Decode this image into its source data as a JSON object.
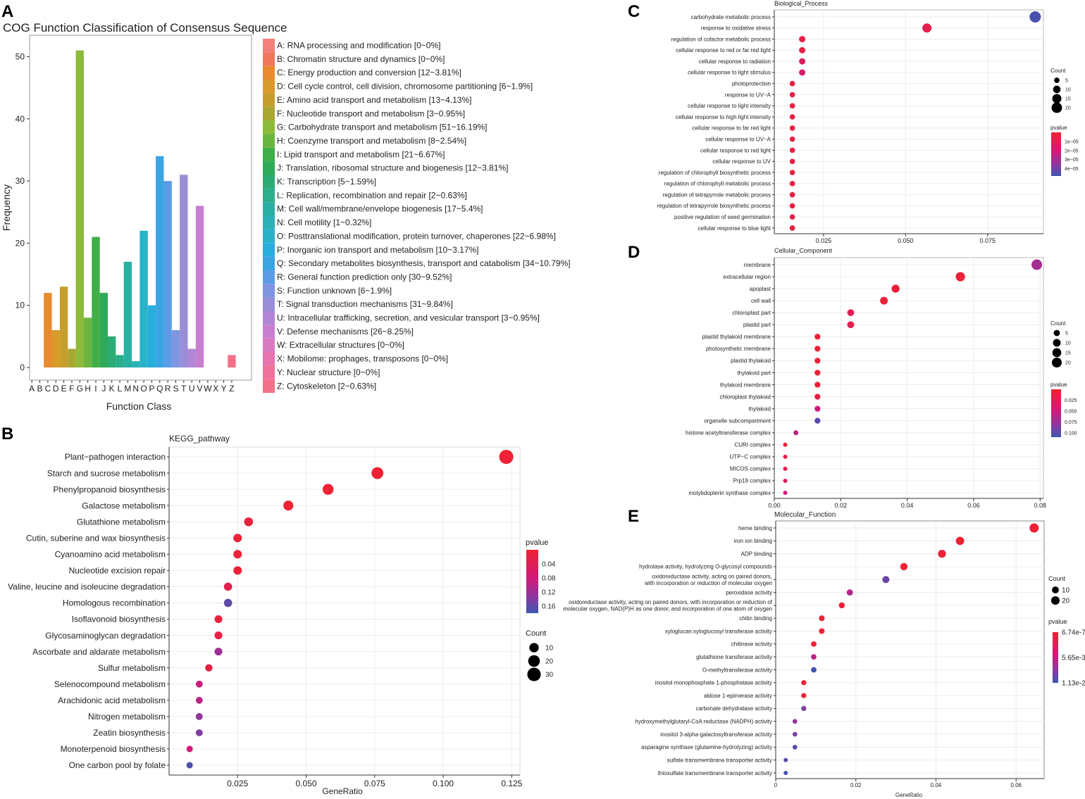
{
  "panels": {
    "a": "A",
    "b": "B",
    "c": "C",
    "d": "D",
    "e": "E"
  },
  "chart_data": [
    {
      "id": "cog",
      "type": "bar",
      "title": "COG Function Classification of Consensus Sequence",
      "xlabel": "Function Class",
      "ylabel": "Frequency",
      "ylim": [
        0,
        55
      ],
      "yticks": [
        0,
        10,
        20,
        30,
        40,
        50
      ],
      "categories": [
        "A",
        "B",
        "C",
        "D",
        "E",
        "F",
        "G",
        "H",
        "I",
        "J",
        "K",
        "L",
        "M",
        "N",
        "O",
        "P",
        "Q",
        "R",
        "S",
        "T",
        "U",
        "V",
        "W",
        "X",
        "Y",
        "Z"
      ],
      "values": [
        0,
        0,
        12,
        6,
        13,
        3,
        51,
        8,
        21,
        12,
        5,
        2,
        17,
        1,
        22,
        10,
        34,
        30,
        6,
        31,
        3,
        26,
        0,
        0,
        0,
        2
      ],
      "colors": [
        "#f47e7a",
        "#f0775e",
        "#e88a2e",
        "#d99a2a",
        "#c59e2c",
        "#a8a833",
        "#8dba3a",
        "#6bb441",
        "#3fae48",
        "#2faa5a",
        "#2bac74",
        "#2aae8c",
        "#29b0a3",
        "#29b2b6",
        "#2ab2c9",
        "#27aedd",
        "#3ba4e3",
        "#5c9ce6",
        "#7f95e0",
        "#9b8ed9",
        "#b186d6",
        "#c87fd0",
        "#d97ac0",
        "#e675ad",
        "#ee729b",
        "#f37088"
      ],
      "legend": [
        "A: RNA processing and modification [0~0%]",
        "B: Chromatin structure and dynamics [0~0%]",
        "C: Energy production and conversion [12~3.81%]",
        "D: Cell cycle control, cell division, chromosome partitioning [6~1.9%]",
        "E: Amino acid transport and metabolism [13~4.13%]",
        "F: Nucleotide transport and metabolism [3~0.95%]",
        "G: Carbohydrate transport and metabolism [51~16.19%]",
        "H: Coenzyme transport and metabolism [8~2.54%]",
        "I: Lipid transport and metabolism [21~6.67%]",
        "J: Translation, ribosomal structure and biogenesis [12~3.81%]",
        "K: Transcription [5~1.59%]",
        "L: Replication, recombination and repair [2~0.63%]",
        "M: Cell wall/membrane/envelope biogenesis [17~5.4%]",
        "N: Cell motility [1~0.32%]",
        "O: Posttranslational modification, protein turnover, chaperones [22~6.98%]",
        "P: Inorganic ion transport and metabolism [10~3.17%]",
        "Q: Secondary metabolites biosynthesis, transport and catabolism [34~10.79%]",
        "R: General function prediction only [30~9.52%]",
        "S: Function unknown [6~1.9%]",
        "T: Signal transduction mechanisms [31~9.84%]",
        "U: Intracellular trafficking, secretion, and vesicular transport [3~0.95%]",
        "V: Defense mechanisms [26~8.25%]",
        "W: Extracellular structures [0~0%]",
        "X: Mobilome: prophages, transposons [0~0%]",
        "Y: Nuclear structure [0~0%]",
        "Z: Cytoskeleton [2~0.63%]"
      ]
    },
    {
      "id": "kegg",
      "type": "scatter",
      "title": "KEGG_pathway",
      "xlabel": "GeneRatio",
      "xlim": [
        0,
        0.128
      ],
      "xticks": [
        0.025,
        0.05,
        0.075,
        0.1,
        0.125
      ],
      "xtick_labels": [
        "0.025",
        "0.050",
        "0.075",
        "0.100",
        "0.125"
      ],
      "categories": [
        "Plant−pathogen interaction",
        "Starch and sucrose metabolism",
        "Phenylpropanoid biosynthesis",
        "Galactose metabolism",
        "Glutathione metabolism",
        "Cutin, suberine and wax biosynthesis",
        "Cyanoamino acid metabolism",
        "Nucleotide excision repair",
        "Valine, leucine and isoleucine degradation",
        "Homologous recombination",
        "Isoflavonoid biosynthesis",
        "Glycosaminoglycan degradation",
        "Ascorbate and aldarate metabolism",
        "Sulfur metabolism",
        "Selenocompound metabolism",
        "Arachidonic acid metabolism",
        "Nitrogen metabolism",
        "Zeatin biosynthesis",
        "Monoterpenoid biosynthesis",
        "One carbon pool by folate"
      ],
      "x": [
        0.123,
        0.076,
        0.058,
        0.0435,
        0.029,
        0.025,
        0.025,
        0.025,
        0.0215,
        0.0215,
        0.018,
        0.018,
        0.018,
        0.0145,
        0.011,
        0.011,
        0.011,
        0.011,
        0.0075,
        0.0075
      ],
      "count": [
        34,
        21,
        16,
        12,
        8,
        7,
        7,
        7,
        6,
        6,
        5,
        5,
        5,
        4,
        3,
        3,
        3,
        3,
        2,
        2
      ],
      "pvalue": [
        0.001,
        0.001,
        0.002,
        0.002,
        0.01,
        0.004,
        0.004,
        0.004,
        0.03,
        0.16,
        0.01,
        0.02,
        0.12,
        0.02,
        0.09,
        0.1,
        0.13,
        0.14,
        0.08,
        0.17
      ],
      "pvalue_legend": {
        "title": "pvalue",
        "range": [
          0.0,
          0.18
        ],
        "ticks": [
          0.04,
          0.08,
          0.12,
          0.16
        ],
        "tick_labels": [
          "0.04",
          "0.08",
          "0.12",
          "0.16"
        ]
      },
      "count_legend": {
        "title": "Count",
        "values": [
          10,
          20,
          30
        ],
        "labels": [
          "10",
          "20",
          "30"
        ]
      },
      "size_scale": {
        "min": 1,
        "max": 34
      }
    },
    {
      "id": "bp",
      "type": "scatter",
      "title": "Biological_Process",
      "xlabel": "",
      "xlim": [
        0.01,
        0.092
      ],
      "xticks": [
        0.025,
        0.05,
        0.075
      ],
      "xtick_labels": [
        "0.025",
        "0.050",
        "0.075"
      ],
      "categories": [
        "carbohydrate metabolic process",
        "response to oxidative stress",
        "regulation of cofactor metabolic process",
        "cellular response to red or far red light",
        "cellular response to radiation",
        "cellular response to light stimulus",
        "photoprotection",
        "response to UV−A",
        "cellular response to light intensity",
        "cellular response to high light intensity",
        "cellular response to far red light",
        "cellular response to UV−A",
        "cellular response to red light",
        "cellular response to UV",
        "regulation of chlorophyll biosynthetic process",
        "regulation of chlorophyll metabolic process",
        "regulation of tetrapyrrole metabolic process",
        "regulation of tetrapyrrole biosynthetic process",
        "positive regulation of seed germination",
        "cellular response to blue light"
      ],
      "x": [
        0.0895,
        0.0565,
        0.0185,
        0.0185,
        0.0185,
        0.0185,
        0.0155,
        0.0155,
        0.0155,
        0.0155,
        0.0155,
        0.0155,
        0.0155,
        0.0155,
        0.0155,
        0.0155,
        0.0155,
        0.0155,
        0.0155,
        0.0155
      ],
      "count": [
        23,
        15,
        7,
        7,
        7,
        7,
        5,
        5,
        5,
        5,
        5,
        5,
        5,
        5,
        5,
        5,
        5,
        5,
        5,
        5
      ],
      "pvalue": [
        4.6e-05,
        8e-06,
        6e-06,
        6e-06,
        1.4e-05,
        1.7e-05,
        5e-06,
        5e-06,
        5e-06,
        5e-06,
        5e-06,
        5e-06,
        5e-06,
        5e-06,
        5e-06,
        5e-06,
        5e-06,
        5e-06,
        5e-06,
        5e-06
      ],
      "pvalue_legend": {
        "title": "pvalue",
        "range": [
          0.0,
          4.8e-05
        ],
        "ticks": [
          1e-05,
          2e-05,
          3e-05,
          4e-05
        ],
        "tick_labels": [
          "1e−05",
          "2e−05",
          "3e−05",
          "4e−05"
        ]
      },
      "count_legend": {
        "title": "Count",
        "values": [
          5,
          10,
          15,
          20
        ],
        "labels": [
          "5",
          "10",
          "15",
          "20"
        ]
      },
      "size_scale": {
        "min": 3,
        "max": 23
      }
    },
    {
      "id": "cc",
      "type": "scatter",
      "title": "Cellular_Component",
      "xlabel": "",
      "xlim": [
        0.0,
        0.081
      ],
      "xticks": [
        0.0,
        0.02,
        0.04,
        0.06,
        0.08
      ],
      "xtick_labels": [
        "0.00",
        "0.02",
        "0.04",
        "0.06",
        "0.08"
      ],
      "categories": [
        "membrane",
        "extracellular region",
        "apoplast",
        "cell wall",
        "chloroplast part",
        "plastid part",
        "plastid thylakoid membrane",
        "photosynthetic membrane",
        "plastid thylakoid",
        "thylakoid part",
        "thylakoid membrane",
        "chloroplast thylakoid",
        "thylakoid",
        "organelle subcompartment",
        "histone acetyltransferase complex",
        "CURI complex",
        "UTP−C complex",
        "MICOS complex",
        "Prp19 complex",
        "molybdopterin synthase complex"
      ],
      "x": [
        0.079,
        0.056,
        0.0365,
        0.033,
        0.023,
        0.023,
        0.013,
        0.013,
        0.013,
        0.013,
        0.013,
        0.013,
        0.013,
        0.013,
        0.0065,
        0.0033,
        0.0033,
        0.0033,
        0.0033,
        0.0033
      ],
      "count": [
        24,
        17,
        11,
        10,
        7,
        7,
        4,
        4,
        4,
        4,
        4,
        4,
        4,
        4,
        2,
        1,
        1,
        1,
        1,
        1
      ],
      "pvalue": [
        0.07,
        0.005,
        0.005,
        0.005,
        0.02,
        0.02,
        0.005,
        0.005,
        0.005,
        0.005,
        0.005,
        0.015,
        0.05,
        0.1,
        0.06,
        0.01,
        0.01,
        0.02,
        0.03,
        0.05
      ],
      "pvalue_legend": {
        "title": "pvalue",
        "range": [
          0.0,
          0.11
        ],
        "ticks": [
          0.025,
          0.05,
          0.075,
          0.1
        ],
        "tick_labels": [
          "0.025",
          "0.050",
          "0.075",
          "0.100"
        ]
      },
      "count_legend": {
        "title": "Count",
        "values": [
          5,
          10,
          15,
          20
        ],
        "labels": [
          "5",
          "10",
          "15",
          "20"
        ]
      },
      "size_scale": {
        "min": 1,
        "max": 24
      }
    },
    {
      "id": "mf",
      "type": "scatter",
      "title": "Molecular_Function",
      "xlabel": "GeneRatio",
      "xlim": [
        0.0,
        0.067
      ],
      "xticks": [
        0.0,
        0.02,
        0.04,
        0.06
      ],
      "xtick_labels": [
        "0",
        "0.02",
        "0.04",
        "0.06"
      ],
      "categories": [
        [
          "heme binding"
        ],
        [
          "iron ion binding"
        ],
        [
          "ADP binding"
        ],
        [
          "hydrolase activity, hydrolyzing O-glycosyl compounds"
        ],
        [
          "oxidoreductase activity, acting on paired donors,",
          "with incorporation or reduction of molecular oxygen"
        ],
        [
          "peroxidase activity"
        ],
        [
          "oxidoreductase activity, acting on paired donors, with incorporation or reduction of",
          "molecular oxygen, NAD(P)H as one donor, and incorporation of one atom of oxygen"
        ],
        [
          "chitin binding"
        ],
        [
          "xyloglucan:xyloglucosyl transferase activity"
        ],
        [
          "chitinase activity"
        ],
        [
          "glutathione transferase activity"
        ],
        [
          "O-methyltransferase activity"
        ],
        [
          "inositol monophosphate 1-phosphatase activity"
        ],
        [
          "aldose 1-epimerase activity"
        ],
        [
          "carbonate dehydratase activity"
        ],
        [
          "hydroxymethylglutaryl-CoA reductase (NADPH) activity"
        ],
        [
          "inositol 3-alpha-galactosyltransferase activity"
        ],
        [
          "asparagine synthase (glutamine-hydrolyzing) activity"
        ],
        [
          "sulfate transmembrane transporter activity"
        ],
        [
          "thiosulfate transmembrane transporter activity"
        ]
      ],
      "x": [
        0.0645,
        0.046,
        0.0415,
        0.032,
        0.0275,
        0.0185,
        0.0165,
        0.0115,
        0.0115,
        0.0095,
        0.0095,
        0.0095,
        0.007,
        0.007,
        0.007,
        0.0048,
        0.0048,
        0.0048,
        0.0025,
        0.0025
      ],
      "count": [
        25,
        18,
        16,
        12,
        11,
        7,
        6,
        5,
        5,
        4,
        4,
        4,
        3,
        3,
        3,
        2,
        2,
        2,
        1,
        1
      ],
      "pvalue": [
        6.74e-07,
        6.74e-07,
        6.74e-07,
        6.74e-07,
        0.0095,
        0.0065,
        0.0005,
        6.74e-07,
        6.74e-07,
        6.74e-07,
        0.006,
        0.011,
        6.74e-07,
        6.74e-07,
        0.009,
        0.008,
        0.009,
        0.01,
        0.0105,
        0.0108
      ],
      "pvalue_legend": {
        "title": "pvalue",
        "range": [
          6.74e-07,
          0.0113
        ],
        "ticks": [
          6.74e-07,
          0.00565,
          0.0113
        ],
        "tick_labels": [
          "6.74e-7",
          "5.65e-3",
          "1.13e-2"
        ]
      },
      "count_legend": {
        "title": "Count",
        "values": [
          10,
          20
        ],
        "labels": [
          "10",
          "20"
        ]
      },
      "size_scale": {
        "min": 1,
        "max": 25
      }
    }
  ]
}
